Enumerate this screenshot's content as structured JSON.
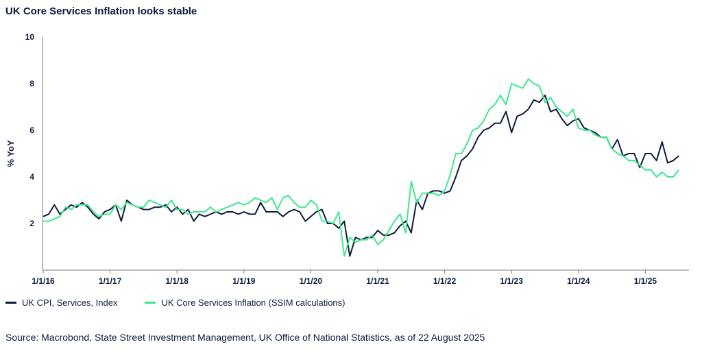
{
  "chart_data": {
    "type": "line",
    "title": "UK Core Services Inflation looks stable",
    "ylabel": "% YoY",
    "xlabel": "",
    "ylim": [
      0,
      10
    ],
    "y_ticks": [
      "2",
      "4",
      "6",
      "8",
      "10"
    ],
    "x_tick_labels": [
      "1/1/16",
      "1/1/17",
      "1/1/18",
      "1/1/19",
      "1/1/20",
      "1/1/21",
      "1/1/22",
      "1/1/23",
      "1/1/24",
      "1/1/25"
    ],
    "grid": false,
    "legend_position": "bottom-left",
    "x_start": "2016-01",
    "x_end": "2025-07",
    "series": [
      {
        "name": "UK CPI, Services, Index",
        "color": "#0b1b3a",
        "values": [
          2.3,
          2.4,
          2.8,
          2.4,
          2.6,
          2.8,
          2.7,
          2.9,
          2.7,
          2.4,
          2.2,
          2.5,
          2.6,
          2.8,
          2.1,
          3.0,
          2.8,
          2.7,
          2.6,
          2.6,
          2.7,
          2.7,
          2.8,
          2.5,
          2.7,
          2.4,
          2.6,
          2.1,
          2.4,
          2.3,
          2.4,
          2.5,
          2.4,
          2.5,
          2.5,
          2.4,
          2.5,
          2.4,
          2.4,
          2.9,
          2.5,
          2.5,
          2.5,
          2.3,
          2.5,
          2.6,
          2.5,
          2.1,
          2.3,
          2.5,
          2.6,
          2.0,
          2.0,
          1.8,
          2.1,
          0.6,
          1.4,
          1.3,
          1.4,
          1.4,
          1.7,
          1.5,
          1.5,
          1.6,
          1.9,
          2.1,
          1.6,
          3.0,
          2.6,
          3.3,
          3.4,
          3.4,
          3.3,
          3.4,
          4.0,
          4.7,
          4.9,
          5.2,
          5.7,
          6.0,
          6.1,
          6.3,
          6.3,
          6.8,
          5.9,
          6.6,
          6.7,
          6.9,
          7.3,
          7.2,
          7.5,
          6.8,
          6.9,
          6.5,
          6.2,
          6.4,
          6.5,
          6.1,
          6.0,
          5.9,
          5.7,
          5.7,
          5.2,
          5.6,
          4.9,
          5.0,
          5.0,
          4.4,
          5.0,
          5.0,
          4.7,
          5.5,
          4.6,
          4.7,
          4.9
        ]
      },
      {
        "name": "UK Core Services Inflation (SSIM calculations)",
        "color": "#3ee88c",
        "values": [
          2.1,
          2.1,
          2.2,
          2.3,
          2.7,
          2.6,
          2.8,
          2.8,
          2.8,
          2.5,
          2.3,
          2.4,
          2.4,
          2.8,
          2.6,
          2.9,
          2.8,
          2.7,
          2.7,
          3.0,
          2.9,
          2.8,
          2.7,
          3.0,
          2.6,
          2.6,
          2.4,
          2.5,
          2.5,
          2.5,
          2.7,
          2.5,
          2.6,
          2.7,
          2.8,
          2.9,
          2.8,
          2.9,
          3.1,
          3.0,
          2.9,
          3.1,
          2.6,
          3.1,
          3.2,
          2.9,
          2.7,
          2.7,
          3.0,
          2.8,
          2.1,
          2.1,
          2.0,
          2.5,
          0.6,
          1.4,
          1.2,
          1.3,
          1.3,
          1.5,
          1.1,
          1.3,
          1.7,
          2.1,
          2.4,
          1.6,
          3.8,
          2.9,
          3.3,
          3.3,
          3.3,
          3.2,
          3.4,
          4.1,
          5.0,
          5.0,
          5.4,
          6.0,
          6.1,
          6.4,
          6.9,
          7.1,
          7.5,
          7.1,
          8.0,
          7.9,
          7.8,
          8.2,
          8.0,
          7.9,
          7.2,
          7.4,
          7.0,
          6.8,
          6.6,
          6.9,
          6.1,
          6.0,
          6.0,
          5.8,
          5.7,
          5.7,
          5.2,
          5.0,
          4.9,
          4.7,
          4.7,
          4.5,
          4.3,
          4.3,
          4.0,
          4.2,
          4.0,
          4.0,
          4.3
        ]
      }
    ]
  },
  "source_note": "Source: Macrobond, State Street Investment Management, UK Office of National Statistics, as of 22 August 2025"
}
